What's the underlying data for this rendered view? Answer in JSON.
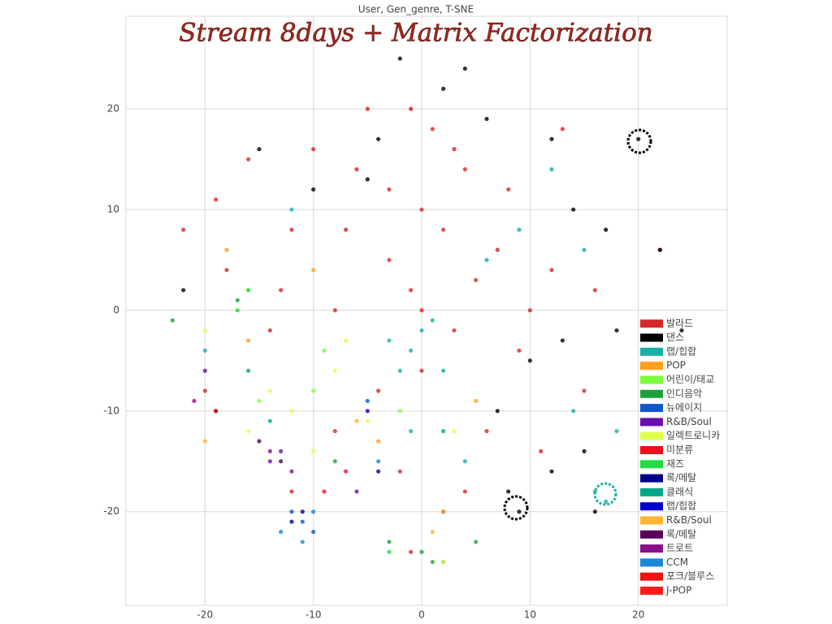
{
  "chart_data": {
    "type": "scatter",
    "title": "User, Gen_genre, T-SNE",
    "annotation": "Stream 8days + Matrix Factorization",
    "xlim": [
      -27.3,
      28.2
    ],
    "ylim": [
      -29.3,
      29.2
    ],
    "xticks": [
      -20,
      -10,
      0,
      10,
      20
    ],
    "yticks": [
      -20,
      -10,
      0,
      10,
      20
    ],
    "grid": true,
    "legend": "lower right",
    "series": [
      {
        "name": "발라드",
        "color": "#d62728",
        "x": [
          0,
          2,
          -3,
          5,
          -1,
          3,
          7,
          -6,
          -10,
          -12,
          4,
          1,
          -4,
          -8,
          -14,
          -18,
          -22,
          10,
          12,
          15,
          -2,
          2,
          -12,
          -20,
          8,
          13,
          -16,
          -8,
          6,
          -5,
          22,
          -1,
          9,
          -3,
          16,
          0,
          -7,
          4,
          11,
          -13
        ],
        "y": [
          10,
          8,
          5,
          3,
          2,
          -2,
          6,
          14,
          16,
          8,
          14,
          18,
          -8,
          -12,
          -2,
          4,
          8,
          0,
          4,
          -8,
          -16,
          -20,
          -18,
          -8,
          12,
          18,
          15,
          0,
          -12,
          20,
          6,
          -24,
          -4,
          12,
          2,
          -6,
          8,
          -18,
          -14,
          2
        ]
      },
      {
        "name": "댄스",
        "color": "#000000",
        "x": [
          -2,
          4,
          12,
          14,
          17,
          18,
          15,
          8,
          -5,
          -10,
          -19,
          20,
          22,
          10,
          7,
          13,
          9,
          16,
          -22,
          6,
          -4,
          24,
          12,
          2,
          -15
        ],
        "y": [
          25,
          24,
          17,
          10,
          8,
          -2,
          -14,
          -18,
          13,
          12,
          -10,
          17,
          6,
          -5,
          -10,
          -3,
          -20,
          -20,
          2,
          19,
          17,
          -2,
          -16,
          22,
          16
        ]
      },
      {
        "name": "랩/힙합",
        "color": "#17b0a8",
        "x": [
          -1,
          2,
          -3,
          0,
          -2,
          1,
          17,
          16,
          18,
          6,
          9,
          15,
          12,
          -1,
          4,
          -12,
          -20,
          14
        ],
        "y": [
          -4,
          -6,
          -3,
          -2,
          -6,
          -1,
          -19,
          -18,
          -12,
          5,
          8,
          6,
          14,
          -12,
          -15,
          10,
          -4,
          -10
        ]
      },
      {
        "name": "POP",
        "color": "#ff9f1c",
        "x": [
          -16,
          -4,
          2,
          -10,
          5,
          -18
        ],
        "y": [
          -3,
          -13,
          -20,
          4,
          -9,
          6
        ]
      },
      {
        "name": "어린이/태교",
        "color": "#7cfc3c",
        "x": [
          -9,
          -15,
          -16,
          -10,
          -2
        ],
        "y": [
          -4,
          -9,
          2,
          -8,
          -10
        ]
      },
      {
        "name": "인디음악",
        "color": "#1aa33a",
        "x": [
          0,
          1,
          -3,
          2,
          -17,
          -23,
          5,
          -8
        ],
        "y": [
          -24,
          -25,
          -23,
          -25,
          1,
          -1,
          -23,
          -15
        ]
      },
      {
        "name": "뉴에이지",
        "color": "#1155cc",
        "x": [
          -11,
          -10,
          -5,
          -12
        ],
        "y": [
          -21,
          -22,
          -9,
          -20
        ]
      },
      {
        "name": "R&B/Soul",
        "color": "#6a0dad",
        "x": [
          -13,
          -14,
          -6,
          -20
        ],
        "y": [
          -14,
          -15,
          -18,
          -6
        ]
      },
      {
        "name": "일렉트로니카",
        "color": "#dfff4f",
        "x": [
          -12,
          -8,
          -5,
          -14,
          -10,
          2,
          -7,
          -20,
          3,
          -16
        ],
        "y": [
          -10,
          -6,
          -11,
          -8,
          -14,
          -25,
          -3,
          -2,
          -12,
          -12
        ]
      },
      {
        "name": "미분류",
        "color": "#e8141e",
        "x": [
          -7,
          -19,
          3
        ],
        "y": [
          -16,
          -10,
          16
        ]
      },
      {
        "name": "재즈",
        "color": "#22dd44",
        "x": [
          -16,
          -17,
          -3
        ],
        "y": [
          2,
          0,
          -24
        ]
      },
      {
        "name": "록/메탈",
        "color": "#00008b",
        "x": [
          -11,
          -4
        ],
        "y": [
          -20,
          -16
        ]
      },
      {
        "name": "클래식",
        "color": "#00a88a",
        "x": [
          -14,
          2,
          -16
        ],
        "y": [
          -11,
          -12,
          -6
        ]
      },
      {
        "name": "랩/힙합",
        "color": "#0000cc",
        "x": [
          -12,
          -5
        ],
        "y": [
          -21,
          -10
        ]
      },
      {
        "name": "R&B/Soul",
        "color": "#ffb52e",
        "x": [
          -20,
          -6,
          1
        ],
        "y": [
          -13,
          -11,
          -22
        ]
      },
      {
        "name": "록/메탈",
        "color": "#5a005a",
        "x": [
          -13,
          -15
        ],
        "y": [
          -15,
          -13
        ]
      },
      {
        "name": "트로트",
        "color": "#8b0f8b",
        "x": [
          -14,
          -12,
          -21
        ],
        "y": [
          -14,
          -16,
          -9
        ]
      },
      {
        "name": "CCM",
        "color": "#1a88d8",
        "x": [
          -10,
          -11,
          -13,
          -4
        ],
        "y": [
          -20,
          -23,
          -22,
          -15
        ]
      },
      {
        "name": "포크/블루스",
        "color": "#ee1111",
        "x": [
          -9,
          -1
        ],
        "y": [
          -18,
          20
        ]
      },
      {
        "name": "J-POP",
        "color": "#ff1a1a",
        "x": [
          -19,
          0
        ],
        "y": [
          11,
          0
        ]
      }
    ]
  }
}
